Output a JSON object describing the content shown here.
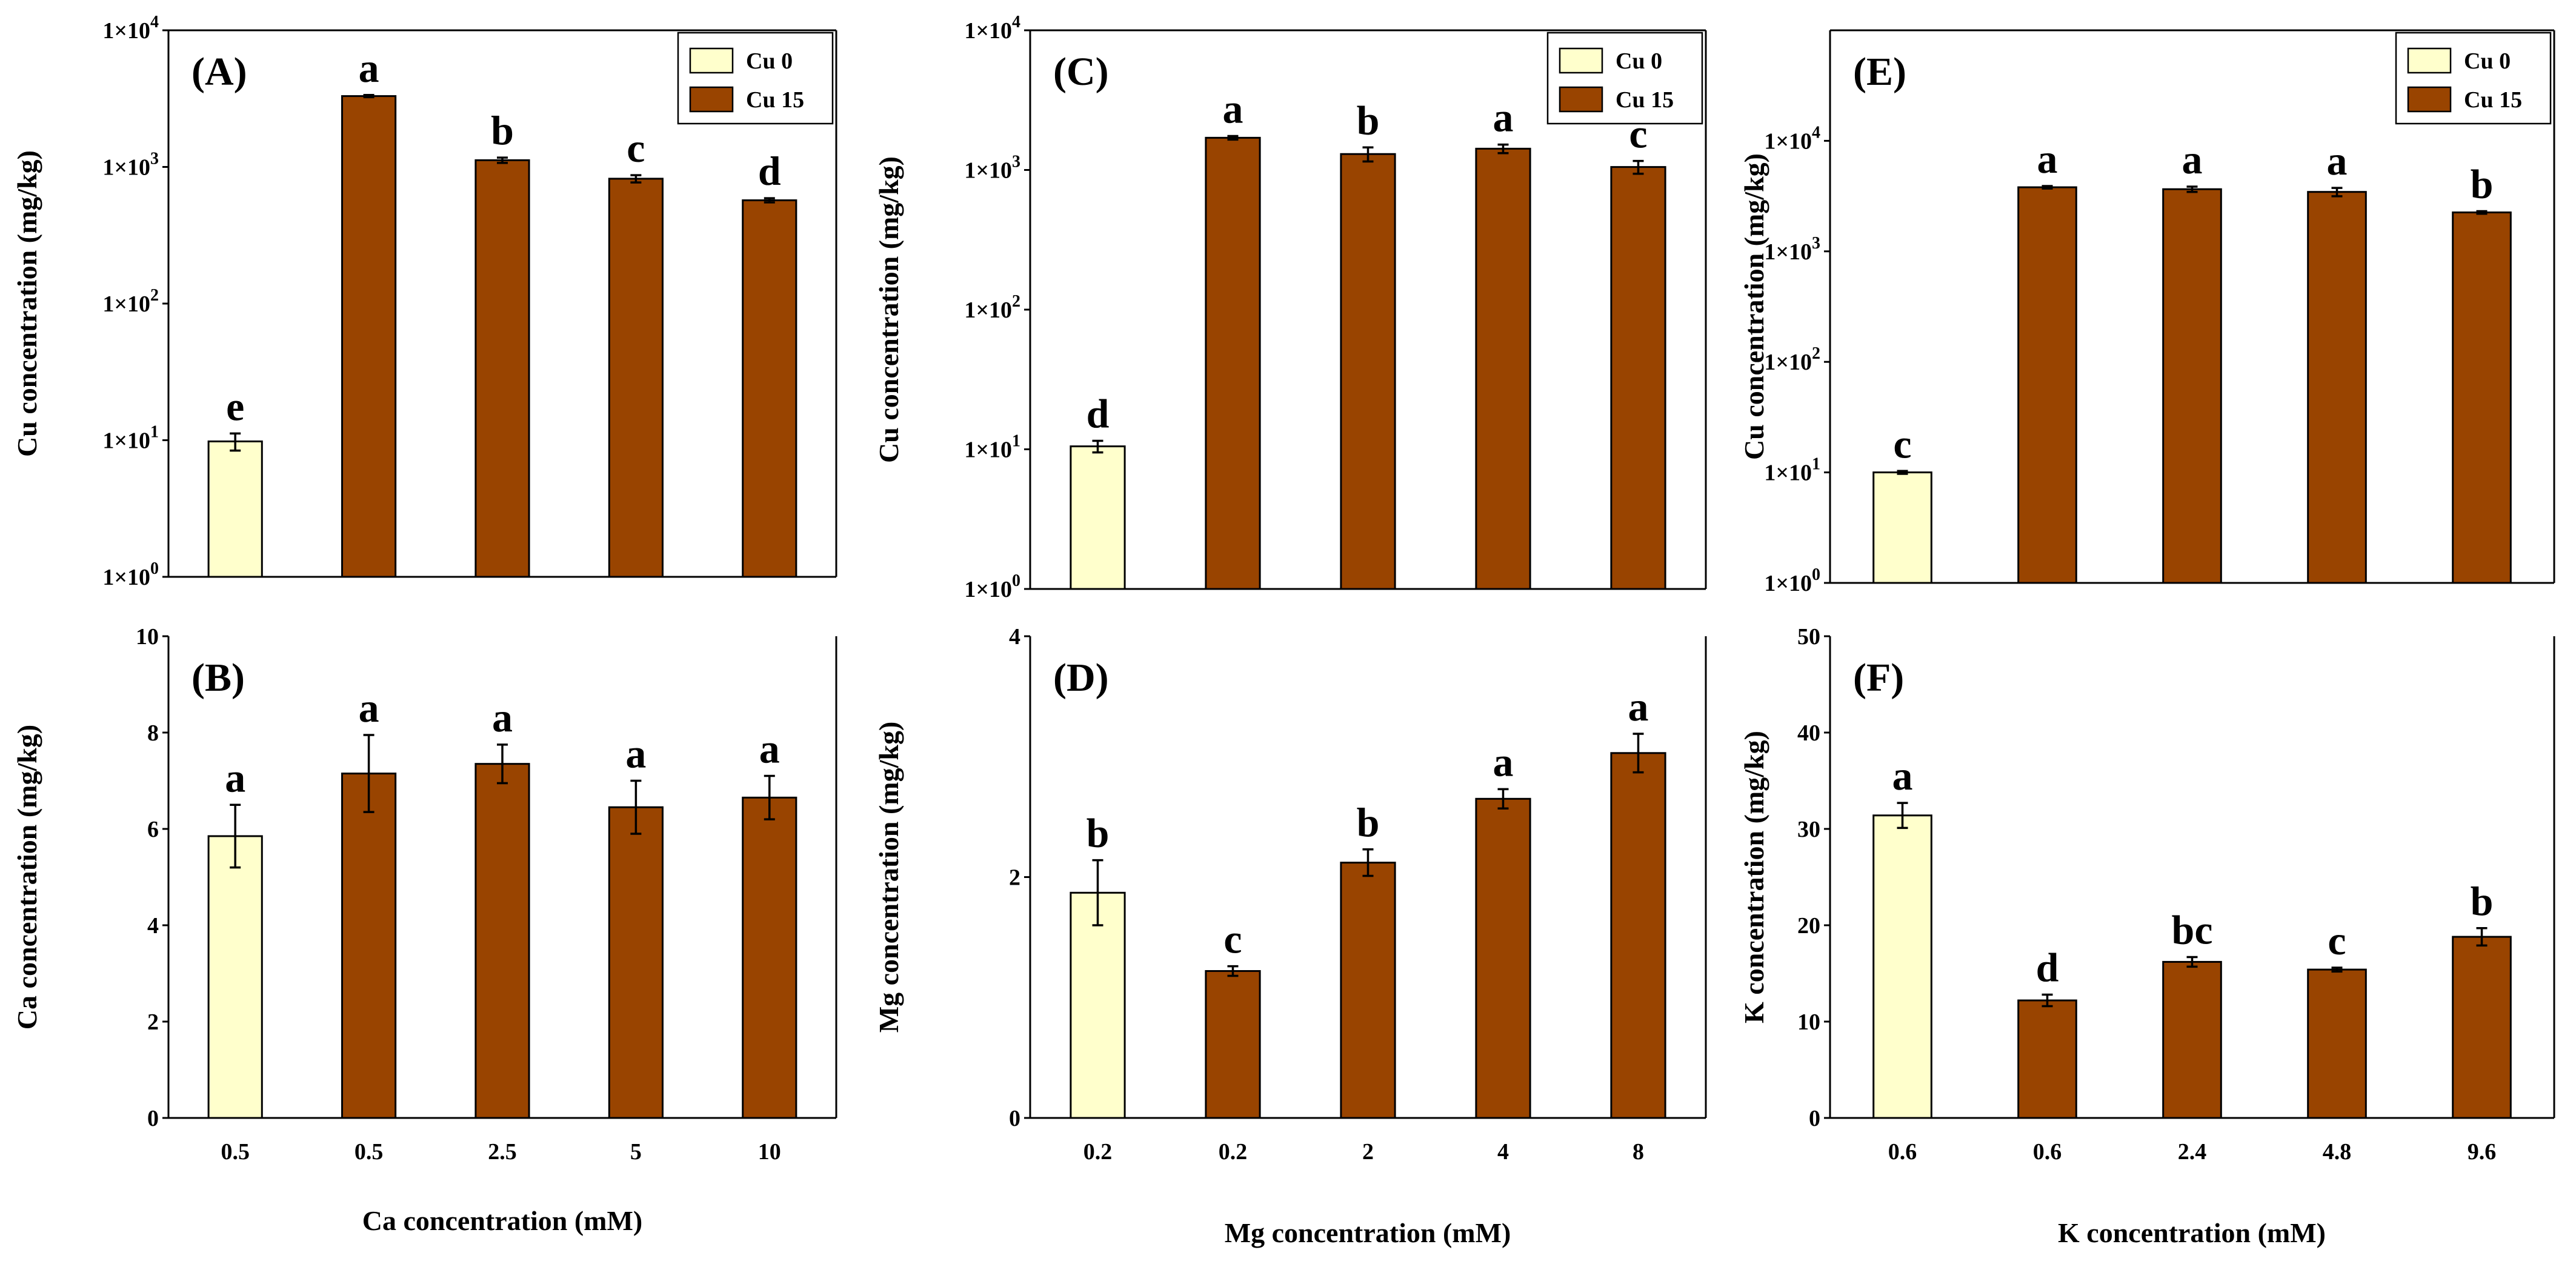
{
  "colors": {
    "cu0": "#ffffcc",
    "cu15": "#994400"
  },
  "legend": {
    "items": [
      {
        "label": "Cu 0",
        "key": "cu0"
      },
      {
        "label": "Cu 15",
        "key": "cu15"
      }
    ]
  },
  "xlabels": {
    "ca": "Ca concentration (mM)",
    "mg": "Mg concentration (mM)",
    "k": "K concentration (mM)"
  },
  "chart_data": [
    {
      "id": "A",
      "type": "bar",
      "scale": "log",
      "label": "(A)",
      "ylabel": "Cu concentration (mg/kg)",
      "ylim": [
        1,
        10000
      ],
      "yticks": [
        {
          "v": 1,
          "m": "1×10",
          "e": "0"
        },
        {
          "v": 10,
          "m": "1×10",
          "e": "1"
        },
        {
          "v": 100,
          "m": "1×10",
          "e": "2"
        },
        {
          "v": 1000,
          "m": "1×10",
          "e": "3"
        },
        {
          "v": 10000,
          "m": "1×10",
          "e": "4"
        }
      ],
      "categories": [
        "0.5",
        "0.5",
        "2.5",
        "5",
        "10"
      ],
      "series_keys": [
        "cu0",
        "cu15",
        "cu15",
        "cu15",
        "cu15"
      ],
      "values": [
        9.8,
        3300,
        1120,
        820,
        570
      ],
      "errors": [
        1.4,
        60,
        50,
        50,
        20
      ],
      "letters": [
        "e",
        "a",
        "b",
        "c",
        "d"
      ],
      "show_legend": true,
      "show_xticks": false
    },
    {
      "id": "B",
      "type": "bar",
      "scale": "linear",
      "label": "(B)",
      "ylabel": "Ca concentration (mg/kg)",
      "ylim": [
        0,
        10
      ],
      "yticks": [
        {
          "v": 0,
          "t": "0"
        },
        {
          "v": 2,
          "t": "2"
        },
        {
          "v": 4,
          "t": "4"
        },
        {
          "v": 6,
          "t": "6"
        },
        {
          "v": 8,
          "t": "8"
        },
        {
          "v": 10,
          "t": "10"
        }
      ],
      "categories": [
        "0.5",
        "0.5",
        "2.5",
        "5",
        "10"
      ],
      "series_keys": [
        "cu0",
        "cu15",
        "cu15",
        "cu15",
        "cu15"
      ],
      "values": [
        5.85,
        7.15,
        7.35,
        6.45,
        6.65
      ],
      "errors": [
        0.65,
        0.8,
        0.4,
        0.55,
        0.45
      ],
      "letters": [
        "a",
        "a",
        "a",
        "a",
        "a"
      ],
      "show_legend": false,
      "show_xticks": true,
      "xlabel_key": "ca"
    },
    {
      "id": "C",
      "type": "bar",
      "scale": "log",
      "label": "(C)",
      "ylabel": "Cu concentration (mg/kg)",
      "ylim": [
        1,
        10000
      ],
      "yticks": [
        {
          "v": 1,
          "m": "1×10",
          "e": "0"
        },
        {
          "v": 10,
          "m": "1×10",
          "e": "1"
        },
        {
          "v": 100,
          "m": "1×10",
          "e": "2"
        },
        {
          "v": 1000,
          "m": "1×10",
          "e": "3"
        },
        {
          "v": 10000,
          "m": "1×10",
          "e": "4"
        }
      ],
      "categories": [
        "0.2",
        "0.2",
        "2",
        "4",
        "8"
      ],
      "series_keys": [
        "cu0",
        "cu15",
        "cu15",
        "cu15",
        "cu15"
      ],
      "values": [
        10.5,
        1700,
        1300,
        1420,
        1050
      ],
      "errors": [
        1.0,
        50,
        150,
        100,
        110
      ],
      "letters": [
        "d",
        "a",
        "b",
        "a",
        "c"
      ],
      "show_legend": true,
      "show_xticks": false
    },
    {
      "id": "D",
      "type": "bar",
      "scale": "linear",
      "label": "(D)",
      "ylabel": "Mg concentration (mg/kg)",
      "ylim": [
        0,
        4
      ],
      "yticks": [
        {
          "v": 0,
          "t": "0"
        },
        {
          "v": 2,
          "t": "2"
        },
        {
          "v": 4,
          "t": "4"
        }
      ],
      "categories": [
        "0.2",
        "0.2",
        "2",
        "4",
        "8"
      ],
      "series_keys": [
        "cu0",
        "cu15",
        "cu15",
        "cu15",
        "cu15"
      ],
      "values": [
        1.87,
        1.22,
        2.12,
        2.65,
        3.03
      ],
      "errors": [
        0.27,
        0.04,
        0.11,
        0.08,
        0.16
      ],
      "letters": [
        "b",
        "c",
        "b",
        "a",
        "a"
      ],
      "show_legend": false,
      "show_xticks": true,
      "xlabel_key": "mg"
    },
    {
      "id": "E",
      "type": "bar",
      "scale": "log",
      "label": "(E)",
      "ylabel": "Cu concentration (mg/kg)",
      "ylim": [
        1,
        100000
      ],
      "yticks": [
        {
          "v": 1,
          "m": "1×10",
          "e": "0"
        },
        {
          "v": 10,
          "m": "1×10",
          "e": "1"
        },
        {
          "v": 100,
          "m": "1×10",
          "e": "2"
        },
        {
          "v": 1000,
          "m": "1×10",
          "e": "3"
        },
        {
          "v": 10000,
          "m": "1×10",
          "e": "4"
        }
      ],
      "categories": [
        "0.6",
        "0.6",
        "2.4",
        "4.8",
        "9.6"
      ],
      "series_keys": [
        "cu0",
        "cu15",
        "cu15",
        "cu15",
        "cu15"
      ],
      "values": [
        10.0,
        3800,
        3650,
        3450,
        2250
      ],
      "errors": [
        0.3,
        100,
        200,
        300,
        60
      ],
      "letters": [
        "c",
        "a",
        "a",
        "a",
        "b"
      ],
      "show_legend": true,
      "show_xticks": false
    },
    {
      "id": "F",
      "type": "bar",
      "scale": "linear",
      "label": "(F)",
      "ylabel": "K concentration (mg/kg)",
      "ylim": [
        0,
        50
      ],
      "yticks": [
        {
          "v": 0,
          "t": "0"
        },
        {
          "v": 10,
          "t": "10"
        },
        {
          "v": 20,
          "t": "20"
        },
        {
          "v": 30,
          "t": "30"
        },
        {
          "v": 40,
          "t": "40"
        },
        {
          "v": 50,
          "t": "50"
        }
      ],
      "categories": [
        "0.6",
        "0.6",
        "2.4",
        "4.8",
        "9.6"
      ],
      "series_keys": [
        "cu0",
        "cu15",
        "cu15",
        "cu15",
        "cu15"
      ],
      "values": [
        31.4,
        12.2,
        16.2,
        15.4,
        18.8
      ],
      "errors": [
        1.3,
        0.6,
        0.5,
        0.2,
        0.9
      ],
      "letters": [
        "a",
        "d",
        "bc",
        "c",
        "b"
      ],
      "show_legend": false,
      "show_xticks": true,
      "xlabel_key": "k"
    }
  ]
}
